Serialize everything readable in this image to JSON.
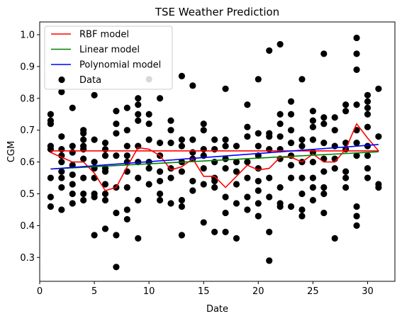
{
  "chart_data": {
    "type": "scatter",
    "title": "TSE Weather Prediction",
    "xlabel": "Date",
    "ylabel": "CGM",
    "xlim": [
      0,
      32.5
    ],
    "ylim": [
      0.225,
      1.04
    ],
    "xticks": [
      0,
      5,
      10,
      15,
      20,
      25,
      30
    ],
    "yticks": [
      0.3,
      0.4,
      0.5,
      0.6,
      0.7,
      0.8,
      0.9,
      1.0
    ],
    "ytick_labels": [
      "0.3",
      "0.4",
      "0.5",
      "0.6",
      "0.7",
      "0.8",
      "0.9",
      "1.0"
    ],
    "legend_position": "top-left",
    "grid": false,
    "series": [
      {
        "name": "RBF model",
        "kind": "line",
        "color": "#ff0000",
        "x": [
          1,
          2,
          3,
          4,
          5,
          6,
          7,
          8,
          9,
          10,
          11,
          12,
          13,
          14,
          15,
          16,
          17,
          18,
          19,
          20,
          21,
          22,
          23,
          24,
          25,
          26,
          27,
          28,
          29,
          30,
          31,
          1
        ],
        "y": [
          0.63,
          0.615,
          0.6,
          0.6,
          0.565,
          0.51,
          0.52,
          0.585,
          0.645,
          0.64,
          0.62,
          0.575,
          0.585,
          0.61,
          0.555,
          0.555,
          0.52,
          0.555,
          0.59,
          0.575,
          0.58,
          0.615,
          0.615,
          0.6,
          0.625,
          0.6,
          0.6,
          0.64,
          0.72,
          0.675,
          0.635,
          0.635
        ]
      },
      {
        "name": "Linear model",
        "kind": "line",
        "color": "#008000",
        "x": [
          1,
          31
        ],
        "y": [
          0.578,
          0.632
        ]
      },
      {
        "name": "Polynomial model",
        "kind": "line",
        "color": "#0000ff",
        "x": [
          1,
          31
        ],
        "y": [
          0.578,
          0.655
        ]
      },
      {
        "name": "Data",
        "kind": "scatter",
        "color": "#000000",
        "points": [
          [
            1,
            0.75
          ],
          [
            1,
            0.73
          ],
          [
            1,
            0.72
          ],
          [
            1,
            0.65
          ],
          [
            1,
            0.64
          ],
          [
            1,
            0.55
          ],
          [
            1,
            0.49
          ],
          [
            1,
            0.46
          ],
          [
            2,
            0.82
          ],
          [
            2,
            0.68
          ],
          [
            2,
            0.64
          ],
          [
            2,
            0.62
          ],
          [
            2,
            0.6
          ],
          [
            2,
            0.57
          ],
          [
            2,
            0.55
          ],
          [
            2,
            0.52
          ],
          [
            2,
            0.45
          ],
          [
            3,
            0.77
          ],
          [
            3,
            0.65
          ],
          [
            3,
            0.63
          ],
          [
            3,
            0.59
          ],
          [
            3,
            0.56
          ],
          [
            3,
            0.53
          ],
          [
            3,
            0.5
          ],
          [
            3,
            0.47
          ],
          [
            4,
            0.7
          ],
          [
            4,
            0.69
          ],
          [
            4,
            0.67
          ],
          [
            4,
            0.65
          ],
          [
            4,
            0.64
          ],
          [
            4,
            0.61
          ],
          [
            4,
            0.55
          ],
          [
            4,
            0.5
          ],
          [
            4,
            0.48
          ],
          [
            5,
            0.81
          ],
          [
            5,
            0.67
          ],
          [
            5,
            0.6
          ],
          [
            5,
            0.58
          ],
          [
            5,
            0.55
          ],
          [
            5,
            0.5
          ],
          [
            5,
            0.49
          ],
          [
            5,
            0.37
          ],
          [
            6,
            0.66
          ],
          [
            6,
            0.64
          ],
          [
            6,
            0.62
          ],
          [
            6,
            0.58
          ],
          [
            6,
            0.57
          ],
          [
            6,
            0.53
          ],
          [
            6,
            0.5
          ],
          [
            6,
            0.48
          ],
          [
            6,
            0.39
          ],
          [
            7,
            0.76
          ],
          [
            7,
            0.72
          ],
          [
            7,
            0.69
          ],
          [
            7,
            0.62
          ],
          [
            7,
            0.52
          ],
          [
            7,
            0.44
          ],
          [
            7,
            0.37
          ],
          [
            7,
            0.27
          ],
          [
            8,
            0.77
          ],
          [
            8,
            0.7
          ],
          [
            8,
            0.65
          ],
          [
            8,
            0.62
          ],
          [
            8,
            0.6
          ],
          [
            8,
            0.57
          ],
          [
            8,
            0.52
          ],
          [
            8,
            0.45
          ],
          [
            8,
            0.42
          ],
          [
            9,
            0.8
          ],
          [
            9,
            0.78
          ],
          [
            9,
            0.75
          ],
          [
            9,
            0.73
          ],
          [
            9,
            0.65
          ],
          [
            9,
            0.6
          ],
          [
            9,
            0.55
          ],
          [
            9,
            0.48
          ],
          [
            9,
            0.36
          ],
          [
            10,
            0.86
          ],
          [
            10,
            0.75
          ],
          [
            10,
            0.72
          ],
          [
            10,
            0.67
          ],
          [
            10,
            0.6
          ],
          [
            10,
            0.58
          ],
          [
            10,
            0.53
          ],
          [
            11,
            0.8
          ],
          [
            11,
            0.66
          ],
          [
            11,
            0.62
          ],
          [
            11,
            0.57
          ],
          [
            11,
            0.54
          ],
          [
            11,
            0.5
          ],
          [
            11,
            0.48
          ],
          [
            12,
            0.73
          ],
          [
            12,
            0.7
          ],
          [
            12,
            0.66
          ],
          [
            12,
            0.58
          ],
          [
            12,
            0.55
          ],
          [
            12,
            0.47
          ],
          [
            13,
            0.87
          ],
          [
            13,
            0.67
          ],
          [
            13,
            0.65
          ],
          [
            13,
            0.6
          ],
          [
            13,
            0.57
          ],
          [
            13,
            0.48
          ],
          [
            13,
            0.46
          ],
          [
            13,
            0.37
          ],
          [
            14,
            0.84
          ],
          [
            14,
            0.67
          ],
          [
            14,
            0.63
          ],
          [
            14,
            0.61
          ],
          [
            14,
            0.54
          ],
          [
            14,
            0.51
          ],
          [
            15,
            0.72
          ],
          [
            15,
            0.7
          ],
          [
            15,
            0.64
          ],
          [
            15,
            0.62
          ],
          [
            15,
            0.58
          ],
          [
            15,
            0.53
          ],
          [
            15,
            0.41
          ],
          [
            16,
            0.67
          ],
          [
            16,
            0.64
          ],
          [
            16,
            0.6
          ],
          [
            16,
            0.55
          ],
          [
            16,
            0.54
          ],
          [
            16,
            0.52
          ],
          [
            16,
            0.38
          ],
          [
            17,
            0.83
          ],
          [
            17,
            0.67
          ],
          [
            17,
            0.65
          ],
          [
            17,
            0.61
          ],
          [
            17,
            0.58
          ],
          [
            17,
            0.49
          ],
          [
            17,
            0.44
          ],
          [
            17,
            0.38
          ],
          [
            18,
            0.65
          ],
          [
            18,
            0.6
          ],
          [
            18,
            0.57
          ],
          [
            18,
            0.53
          ],
          [
            18,
            0.47
          ],
          [
            18,
            0.36
          ],
          [
            19,
            0.78
          ],
          [
            19,
            0.71
          ],
          [
            19,
            0.68
          ],
          [
            19,
            0.6
          ],
          [
            19,
            0.55
          ],
          [
            19,
            0.49
          ],
          [
            19,
            0.45
          ],
          [
            20,
            0.86
          ],
          [
            20,
            0.69
          ],
          [
            20,
            0.65
          ],
          [
            20,
            0.62
          ],
          [
            20,
            0.58
          ],
          [
            20,
            0.54
          ],
          [
            20,
            0.51
          ],
          [
            20,
            0.47
          ],
          [
            20,
            0.43
          ],
          [
            21,
            0.95
          ],
          [
            21,
            0.69
          ],
          [
            21,
            0.68
          ],
          [
            21,
            0.64
          ],
          [
            21,
            0.55
          ],
          [
            21,
            0.49
          ],
          [
            21,
            0.38
          ],
          [
            21,
            0.29
          ],
          [
            22,
            0.97
          ],
          [
            22,
            0.75
          ],
          [
            22,
            0.72
          ],
          [
            22,
            0.68
          ],
          [
            22,
            0.64
          ],
          [
            22,
            0.61
          ],
          [
            22,
            0.52
          ],
          [
            22,
            0.47
          ],
          [
            22,
            0.46
          ],
          [
            23,
            0.79
          ],
          [
            23,
            0.75
          ],
          [
            23,
            0.7
          ],
          [
            23,
            0.66
          ],
          [
            23,
            0.62
          ],
          [
            23,
            0.59
          ],
          [
            23,
            0.55
          ],
          [
            23,
            0.46
          ],
          [
            24,
            0.86
          ],
          [
            24,
            0.67
          ],
          [
            24,
            0.65
          ],
          [
            24,
            0.6
          ],
          [
            24,
            0.55
          ],
          [
            24,
            0.5
          ],
          [
            24,
            0.45
          ],
          [
            24,
            0.43
          ],
          [
            25,
            0.76
          ],
          [
            25,
            0.73
          ],
          [
            25,
            0.71
          ],
          [
            25,
            0.67
          ],
          [
            25,
            0.63
          ],
          [
            25,
            0.6
          ],
          [
            25,
            0.55
          ],
          [
            25,
            0.52
          ],
          [
            25,
            0.48
          ],
          [
            26,
            0.94
          ],
          [
            26,
            0.74
          ],
          [
            26,
            0.72
          ],
          [
            26,
            0.66
          ],
          [
            26,
            0.61
          ],
          [
            26,
            0.57
          ],
          [
            26,
            0.52
          ],
          [
            26,
            0.5
          ],
          [
            26,
            0.44
          ],
          [
            27,
            0.74
          ],
          [
            27,
            0.7
          ],
          [
            27,
            0.65
          ],
          [
            27,
            0.61
          ],
          [
            27,
            0.58
          ],
          [
            27,
            0.36
          ],
          [
            28,
            0.78
          ],
          [
            28,
            0.76
          ],
          [
            28,
            0.66
          ],
          [
            28,
            0.64
          ],
          [
            28,
            0.57
          ],
          [
            28,
            0.55
          ],
          [
            28,
            0.52
          ],
          [
            29,
            0.99
          ],
          [
            29,
            0.94
          ],
          [
            29,
            0.89
          ],
          [
            29,
            0.78
          ],
          [
            29,
            0.7
          ],
          [
            29,
            0.66
          ],
          [
            29,
            0.62
          ],
          [
            29,
            0.46
          ],
          [
            29,
            0.43
          ],
          [
            29,
            0.4
          ],
          [
            30,
            0.81
          ],
          [
            30,
            0.79
          ],
          [
            30,
            0.77
          ],
          [
            30,
            0.75
          ],
          [
            30,
            0.71
          ],
          [
            30,
            0.65
          ],
          [
            30,
            0.62
          ],
          [
            30,
            0.58
          ],
          [
            30,
            0.55
          ],
          [
            31,
            0.83
          ],
          [
            31,
            0.68
          ],
          [
            31,
            0.53
          ],
          [
            31,
            0.52
          ]
        ]
      }
    ]
  }
}
